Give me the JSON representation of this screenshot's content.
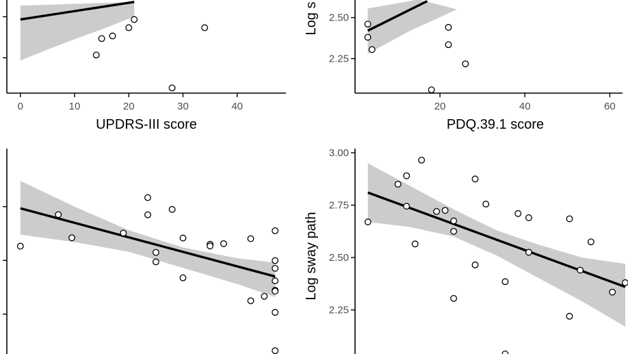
{
  "chart_data": [
    {
      "type": "scatter",
      "position": "top-left",
      "xlabel": "UPDRS-III score",
      "ylabel": "",
      "xlim": [
        -2.5,
        49
      ],
      "ylim": [
        2.035,
        2.61
      ],
      "x_ticks": [
        0,
        10,
        20,
        30,
        40
      ],
      "x_tick_labels": [
        "0",
        "10",
        "20",
        "30",
        "40"
      ],
      "y_ticks": [
        2.25,
        2.5
      ],
      "y_tick_labels": [
        "",
        ""
      ],
      "points": [
        {
          "x": 14,
          "y": 2.267
        },
        {
          "x": 15,
          "y": 2.367
        },
        {
          "x": 17,
          "y": 2.383
        },
        {
          "x": 20,
          "y": 2.433
        },
        {
          "x": 21,
          "y": 2.483
        },
        {
          "x": 28,
          "y": 2.067
        },
        {
          "x": 34,
          "y": 2.433
        }
      ],
      "fit": {
        "x0": 0,
        "y0": 2.483,
        "x1": 21,
        "y1": 2.59
      },
      "band_upper": [
        [
          0,
          2.567
        ],
        [
          21,
          2.59
        ]
      ],
      "band_lower": [
        [
          0,
          2.233
        ],
        [
          5,
          2.3
        ],
        [
          10,
          2.363
        ],
        [
          15,
          2.423
        ],
        [
          21,
          2.5
        ]
      ]
    },
    {
      "type": "scatter",
      "position": "top-right",
      "xlabel": "PDQ.39.1 score",
      "ylabel": "Log s",
      "xlim": [
        0,
        63
      ],
      "ylim": [
        2.04,
        2.615
      ],
      "x_ticks": [
        20,
        40,
        60
      ],
      "x_tick_labels": [
        "20",
        "40",
        "60"
      ],
      "y_ticks": [
        2.25,
        2.5
      ],
      "y_tick_labels": [
        "2.25",
        "2.50"
      ],
      "points": [
        {
          "x": 3,
          "y": 2.46
        },
        {
          "x": 3,
          "y": 2.38
        },
        {
          "x": 4,
          "y": 2.305
        },
        {
          "x": 18,
          "y": 2.06
        },
        {
          "x": 22,
          "y": 2.44
        },
        {
          "x": 22,
          "y": 2.335
        },
        {
          "x": 26,
          "y": 2.218
        }
      ],
      "fit": {
        "x0": 3,
        "y0": 2.42,
        "x1": 17,
        "y1": 2.6
      },
      "band_upper": [
        [
          3,
          2.555
        ],
        [
          15,
          2.61
        ]
      ],
      "band_lower": [
        [
          3,
          2.28
        ],
        [
          8,
          2.35
        ],
        [
          13,
          2.42
        ],
        [
          19,
          2.49
        ],
        [
          24,
          2.55
        ]
      ]
    },
    {
      "type": "scatter",
      "position": "bottom-left",
      "xlabel": "",
      "ylabel": "",
      "xlim": [
        -2.5,
        49
      ],
      "ylim": [
        2.055,
        3.02
      ],
      "x_ticks": [],
      "x_tick_labels": [],
      "y_ticks": [
        2.25,
        2.5,
        2.75
      ],
      "y_tick_labels": [
        "",
        "",
        ""
      ],
      "points": [
        {
          "x": 0,
          "y": 2.566
        },
        {
          "x": 7,
          "y": 2.713
        },
        {
          "x": 9.5,
          "y": 2.605
        },
        {
          "x": 19,
          "y": 2.627
        },
        {
          "x": 23.5,
          "y": 2.792
        },
        {
          "x": 23.5,
          "y": 2.712
        },
        {
          "x": 25,
          "y": 2.537
        },
        {
          "x": 25,
          "y": 2.493
        },
        {
          "x": 28,
          "y": 2.737
        },
        {
          "x": 30,
          "y": 2.604
        },
        {
          "x": 30,
          "y": 2.419
        },
        {
          "x": 35,
          "y": 2.575
        },
        {
          "x": 35,
          "y": 2.567
        },
        {
          "x": 37.5,
          "y": 2.578
        },
        {
          "x": 42.5,
          "y": 2.601
        },
        {
          "x": 42.5,
          "y": 2.312
        },
        {
          "x": 45,
          "y": 2.333
        },
        {
          "x": 47,
          "y": 2.638
        },
        {
          "x": 47,
          "y": 2.499
        },
        {
          "x": 47,
          "y": 2.463
        },
        {
          "x": 47,
          "y": 2.405
        },
        {
          "x": 47,
          "y": 2.361
        },
        {
          "x": 47,
          "y": 2.357
        },
        {
          "x": 47,
          "y": 2.258
        },
        {
          "x": 47,
          "y": 2.08
        }
      ],
      "fit": {
        "x0": 0,
        "y0": 2.742,
        "x1": 47,
        "y1": 2.425
      },
      "band_upper": [
        [
          0,
          2.87
        ],
        [
          10,
          2.75
        ],
        [
          20,
          2.64
        ],
        [
          30,
          2.56
        ],
        [
          40,
          2.51
        ],
        [
          47,
          2.49
        ]
      ],
      "band_lower": [
        [
          0,
          2.62
        ],
        [
          10,
          2.585
        ],
        [
          20,
          2.54
        ],
        [
          30,
          2.465
        ],
        [
          40,
          2.39
        ],
        [
          47,
          2.33
        ]
      ]
    },
    {
      "type": "scatter",
      "position": "bottom-right",
      "xlabel": "",
      "ylabel": "Log sway path",
      "xlim": [
        0,
        63
      ],
      "ylim": [
        2.03,
        3.02
      ],
      "x_ticks": [],
      "x_tick_labels": [],
      "y_ticks": [
        2.25,
        2.5,
        2.75,
        3.0
      ],
      "y_tick_labels": [
        "2.25",
        "2.50",
        "2.75",
        "3.00"
      ],
      "points": [
        {
          "x": 3,
          "y": 2.67
        },
        {
          "x": 10,
          "y": 2.85
        },
        {
          "x": 12,
          "y": 2.89
        },
        {
          "x": 12,
          "y": 2.745
        },
        {
          "x": 14,
          "y": 2.565
        },
        {
          "x": 15.5,
          "y": 2.965
        },
        {
          "x": 19,
          "y": 2.72
        },
        {
          "x": 21,
          "y": 2.725
        },
        {
          "x": 23,
          "y": 2.675
        },
        {
          "x": 23,
          "y": 2.625
        },
        {
          "x": 23,
          "y": 2.305
        },
        {
          "x": 28,
          "y": 2.875
        },
        {
          "x": 28,
          "y": 2.465
        },
        {
          "x": 30.5,
          "y": 2.755
        },
        {
          "x": 35,
          "y": 2.385
        },
        {
          "x": 35,
          "y": 2.04
        },
        {
          "x": 38,
          "y": 2.71
        },
        {
          "x": 40.5,
          "y": 2.69
        },
        {
          "x": 40.5,
          "y": 2.525
        },
        {
          "x": 50,
          "y": 2.685
        },
        {
          "x": 50,
          "y": 2.22
        },
        {
          "x": 52.5,
          "y": 2.44
        },
        {
          "x": 55,
          "y": 2.575
        },
        {
          "x": 60,
          "y": 2.335
        },
        {
          "x": 63,
          "y": 2.38
        }
      ],
      "fit": {
        "x0": 3,
        "y0": 2.81,
        "x1": 63,
        "y1": 2.36
      },
      "band_upper": [
        [
          3,
          2.95
        ],
        [
          13,
          2.84
        ],
        [
          23,
          2.73
        ],
        [
          33,
          2.63
        ],
        [
          43,
          2.56
        ],
        [
          53,
          2.5
        ],
        [
          63,
          2.47
        ]
      ],
      "band_lower": [
        [
          3,
          2.67
        ],
        [
          13,
          2.645
        ],
        [
          23,
          2.6
        ],
        [
          33,
          2.51
        ],
        [
          43,
          2.4
        ],
        [
          53,
          2.29
        ],
        [
          63,
          2.17
        ]
      ]
    }
  ]
}
